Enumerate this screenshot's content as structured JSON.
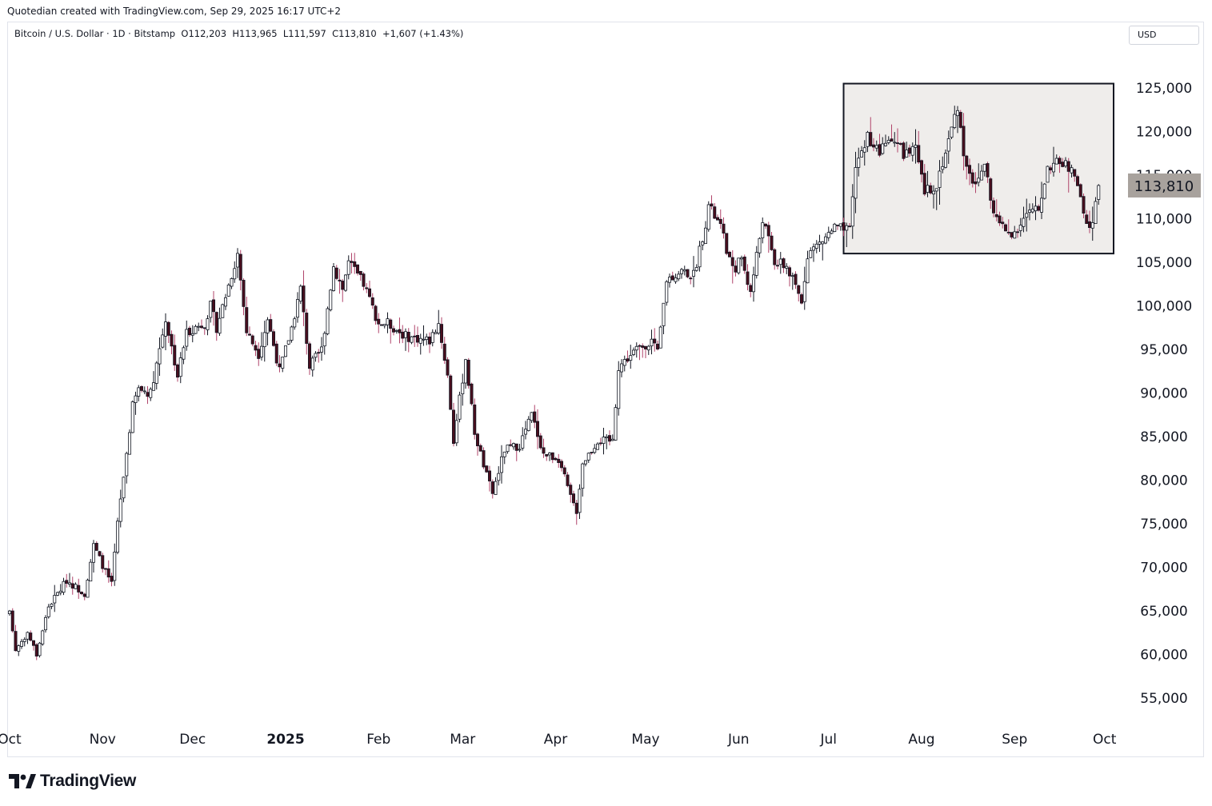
{
  "header": {
    "credit": "Quotedian created with TradingView.com, Sep 29, 2025 16:17 UTC+2",
    "legend": "Bitcoin / U.S. Dollar · 1D · Bitstamp  O112,203  H113,965  L111,597  C113,810  +1,607 (+1.43%)",
    "currency": "USD"
  },
  "brand": {
    "name": "TradingView",
    "logo_icon": "tradingview-logo-icon"
  },
  "colors": {
    "up": "#ffffff",
    "down": "#4a0e1e",
    "wick_down": "#b0446a",
    "outline": "#131722",
    "box_fill": "#efedeb",
    "price_label_bg": "#a8a29d"
  },
  "chart_data": {
    "type": "candlestick",
    "ylim": [
      50000,
      130000
    ],
    "yticks": [
      55000,
      60000,
      65000,
      70000,
      75000,
      80000,
      85000,
      90000,
      95000,
      100000,
      105000,
      110000,
      115000,
      120000,
      125000
    ],
    "ytick_labels": [
      "55,000",
      "60,000",
      "65,000",
      "70,000",
      "75,000",
      "80,000",
      "85,000",
      "90,000",
      "95,000",
      "100,000",
      "105,000",
      "110,000",
      "115,000",
      "120,000",
      "125,000"
    ],
    "xticks": [
      {
        "label": "Oct",
        "date": "2024-10-01",
        "bold": false
      },
      {
        "label": "Nov",
        "date": "2024-11-01",
        "bold": false
      },
      {
        "label": "Dec",
        "date": "2024-12-01",
        "bold": false
      },
      {
        "label": "2025",
        "date": "2025-01-01",
        "bold": true
      },
      {
        "label": "Feb",
        "date": "2025-02-01",
        "bold": false
      },
      {
        "label": "Mar",
        "date": "2025-03-01",
        "bold": false
      },
      {
        "label": "Apr",
        "date": "2025-04-01",
        "bold": false
      },
      {
        "label": "May",
        "date": "2025-05-01",
        "bold": false
      },
      {
        "label": "Jun",
        "date": "2025-06-01",
        "bold": false
      },
      {
        "label": "Jul",
        "date": "2025-07-01",
        "bold": false
      },
      {
        "label": "Aug",
        "date": "2025-08-01",
        "bold": false
      },
      {
        "label": "Sep",
        "date": "2025-09-01",
        "bold": false
      },
      {
        "label": "Oct",
        "date": "2025-10-01",
        "bold": false
      }
    ],
    "start_date": "2024-10-01",
    "closes_anchor": [
      [
        "2024-10-01",
        65000
      ],
      [
        "2024-10-03",
        60500
      ],
      [
        "2024-10-07",
        62500
      ],
      [
        "2024-10-10",
        60000
      ],
      [
        "2024-10-14",
        65500
      ],
      [
        "2024-10-20",
        68500
      ],
      [
        "2024-10-26",
        67000
      ],
      [
        "2024-10-29",
        72500
      ],
      [
        "2024-11-02",
        69500
      ],
      [
        "2024-11-04",
        68000
      ],
      [
        "2024-11-06",
        75000
      ],
      [
        "2024-11-11",
        88500
      ],
      [
        "2024-11-13",
        90500
      ],
      [
        "2024-11-17",
        90000
      ],
      [
        "2024-11-22",
        98500
      ],
      [
        "2024-11-26",
        92000
      ],
      [
        "2024-11-29",
        97000
      ],
      [
        "2024-12-05",
        98000
      ],
      [
        "2024-12-07",
        100000
      ],
      [
        "2024-12-09",
        97500
      ],
      [
        "2024-12-16",
        106000
      ],
      [
        "2024-12-19",
        97000
      ],
      [
        "2024-12-23",
        94500
      ],
      [
        "2024-12-26",
        98500
      ],
      [
        "2024-12-30",
        92500
      ],
      [
        "2025-01-03",
        97500
      ],
      [
        "2025-01-06",
        102000
      ],
      [
        "2025-01-09",
        93000
      ],
      [
        "2025-01-13",
        95000
      ],
      [
        "2025-01-17",
        104500
      ],
      [
        "2025-01-20",
        102000
      ],
      [
        "2025-01-22",
        105000
      ],
      [
        "2025-01-27",
        102500
      ],
      [
        "2025-02-01",
        98000
      ],
      [
        "2025-02-04",
        98000
      ],
      [
        "2025-02-10",
        96500
      ],
      [
        "2025-02-18",
        96000
      ],
      [
        "2025-02-21",
        98000
      ],
      [
        "2025-02-24",
        92000
      ],
      [
        "2025-02-26",
        84500
      ],
      [
        "2025-03-02",
        94000
      ],
      [
        "2025-03-05",
        85500
      ],
      [
        "2025-03-09",
        80500
      ],
      [
        "2025-03-11",
        78500
      ],
      [
        "2025-03-15",
        83500
      ],
      [
        "2025-03-20",
        84000
      ],
      [
        "2025-03-24",
        87500
      ],
      [
        "2025-03-28",
        83000
      ],
      [
        "2025-04-02",
        82500
      ],
      [
        "2025-04-06",
        78000
      ],
      [
        "2025-04-08",
        76500
      ],
      [
        "2025-04-10",
        82000
      ],
      [
        "2025-04-15",
        84500
      ],
      [
        "2025-04-20",
        84500
      ],
      [
        "2025-04-22",
        93000
      ],
      [
        "2025-04-28",
        95000
      ],
      [
        "2025-05-03",
        96000
      ],
      [
        "2025-05-05",
        94500
      ],
      [
        "2025-05-08",
        103000
      ],
      [
        "2025-05-13",
        104000
      ],
      [
        "2025-05-17",
        103500
      ],
      [
        "2025-05-21",
        109500
      ],
      [
        "2025-05-22",
        111500
      ],
      [
        "2025-05-26",
        109000
      ],
      [
        "2025-05-30",
        104000
      ],
      [
        "2025-06-02",
        105500
      ],
      [
        "2025-06-05",
        101500
      ],
      [
        "2025-06-09",
        110000
      ],
      [
        "2025-06-13",
        105000
      ],
      [
        "2025-06-17",
        104500
      ],
      [
        "2025-06-22",
        100500
      ],
      [
        "2025-06-24",
        106000
      ],
      [
        "2025-06-29",
        107500
      ],
      [
        "2025-07-03",
        109000
      ],
      [
        "2025-07-08",
        108500
      ],
      [
        "2025-07-10",
        116000
      ],
      [
        "2025-07-14",
        119500
      ],
      [
        "2025-07-18",
        117500
      ],
      [
        "2025-07-22",
        119500
      ],
      [
        "2025-07-26",
        117500
      ],
      [
        "2025-07-30",
        117800
      ],
      [
        "2025-08-02",
        113000
      ],
      [
        "2025-08-06",
        114000
      ],
      [
        "2025-08-10",
        119000
      ],
      [
        "2025-08-13",
        123000
      ],
      [
        "2025-08-15",
        117500
      ],
      [
        "2025-08-19",
        113500
      ],
      [
        "2025-08-22",
        116500
      ],
      [
        "2025-08-25",
        110500
      ],
      [
        "2025-08-29",
        108500
      ],
      [
        "2025-09-01",
        108500
      ],
      [
        "2025-09-05",
        110500
      ],
      [
        "2025-09-09",
        111000
      ],
      [
        "2025-09-12",
        116000
      ],
      [
        "2025-09-17",
        116500
      ],
      [
        "2025-09-21",
        115000
      ],
      [
        "2025-09-25",
        109000
      ],
      [
        "2025-09-27",
        109500
      ],
      [
        "2025-09-29",
        113810
      ]
    ],
    "last_bar": {
      "open": 112203,
      "high": 113965,
      "low": 111597,
      "close": 113810
    },
    "last_price_label": "113,810",
    "range_box": {
      "from": "2025-07-06",
      "to": "2025-10-04",
      "top": 125500,
      "bottom": 106000
    }
  }
}
